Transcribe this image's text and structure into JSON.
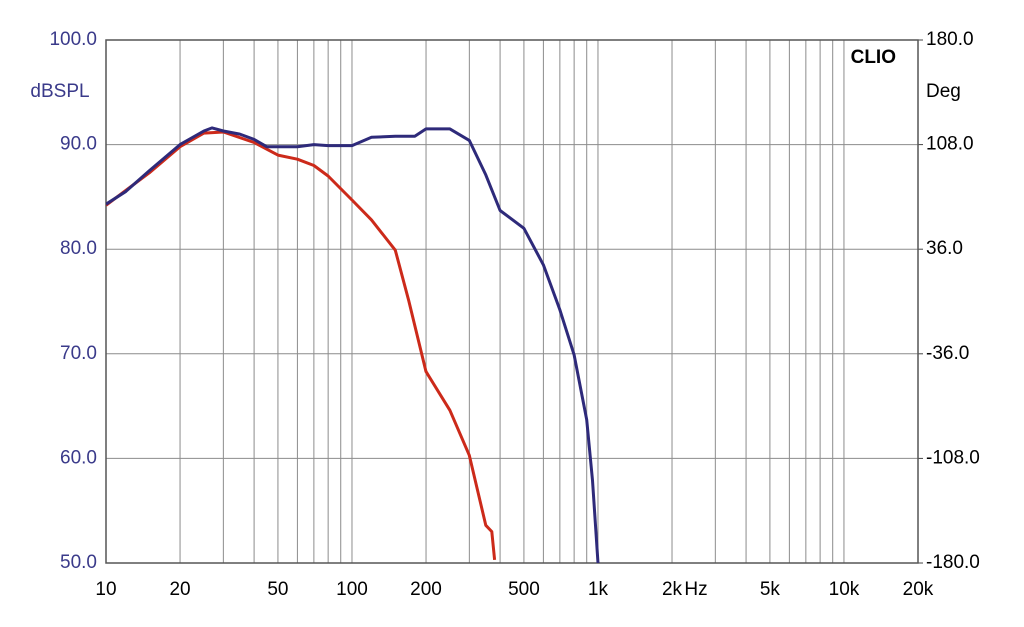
{
  "chart_data": {
    "type": "line",
    "brand": "CLIO",
    "ylabel": "dBSPL",
    "y2label": "Deg",
    "xlabel": "Hz",
    "log_x": true,
    "grid": true,
    "xlim": [
      10,
      20000
    ],
    "xticks": [
      10,
      20,
      50,
      100,
      200,
      500,
      {
        "value": 1000,
        "label": "1k"
      },
      {
        "value": 2000,
        "label": "2k"
      },
      {
        "value": 5000,
        "label": "5k"
      },
      {
        "value": 10000,
        "label": "10k"
      },
      {
        "value": 20000,
        "label": "20k"
      }
    ],
    "xminor_ticks": [
      30,
      40,
      60,
      70,
      80,
      90,
      300,
      400,
      600,
      700,
      800,
      900,
      3000,
      4000,
      6000,
      7000,
      8000,
      9000
    ],
    "ylim": [
      50,
      100
    ],
    "yticks": [
      {
        "value": 50,
        "label": "50.0"
      },
      {
        "value": 60,
        "label": "60.0"
      },
      {
        "value": 70,
        "label": "70.0"
      },
      {
        "value": 80,
        "label": "80.0"
      },
      {
        "value": 90,
        "label": "90.0"
      },
      {
        "value": 100,
        "label": "100.0"
      }
    ],
    "y2lim": [
      -180,
      180
    ],
    "y2ticks": [
      {
        "value": -180,
        "label": "-180.0"
      },
      {
        "value": -108,
        "label": "-108.0"
      },
      {
        "value": -36,
        "label": "-36.0"
      },
      {
        "value": 36,
        "label": "36.0"
      },
      {
        "value": 108,
        "label": "108.0"
      },
      {
        "value": 180,
        "label": "180.0"
      }
    ],
    "series": [
      {
        "color": "#2e2a7a",
        "x": [
          10,
          12,
          15,
          20,
          25,
          27,
          30,
          35,
          40,
          45,
          50,
          60,
          70,
          80,
          100,
          120,
          150,
          180,
          200,
          250,
          300,
          350,
          400,
          500,
          600,
          700,
          800,
          900,
          950,
          1000
        ],
        "values": [
          84.3,
          85.5,
          87.5,
          90.0,
          91.3,
          91.6,
          91.3,
          91.0,
          90.5,
          89.8,
          89.8,
          89.8,
          90.0,
          89.9,
          89.9,
          90.7,
          90.8,
          90.8,
          91.5,
          91.5,
          90.4,
          87.1,
          83.7,
          82.0,
          78.5,
          74.2,
          69.9,
          63.7,
          57.9,
          50.0
        ]
      },
      {
        "color": "#cc2a1a",
        "x": [
          10,
          15,
          20,
          25,
          30,
          40,
          50,
          60,
          70,
          80,
          100,
          120,
          150,
          170,
          200,
          250,
          300,
          350,
          370,
          380
        ],
        "values": [
          84.2,
          87.3,
          89.8,
          91.1,
          91.2,
          90.2,
          89.0,
          88.6,
          88.0,
          87.0,
          84.7,
          82.8,
          79.9,
          75.1,
          68.3,
          64.6,
          60.3,
          53.6,
          53.0,
          50.3
        ]
      }
    ]
  }
}
